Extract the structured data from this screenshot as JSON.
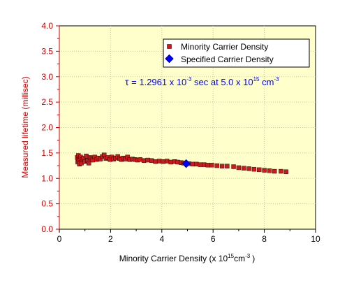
{
  "colors": {
    "plot_background": "#FFFFCC",
    "series_marker": "#CC1A1A",
    "specified_marker": "#0000FF",
    "y_axis": "#CC0000",
    "annotation": "#0000FF"
  },
  "chart_data": {
    "type": "scatter",
    "xlabel": {
      "prefix": "Minority Carrier Density (x 10",
      "exponent": "15",
      "unit": "cm",
      "unit_exponent": "-3",
      "suffix": ")"
    },
    "ylabel": "Measured lifetime (millisec)",
    "xlim": [
      0,
      10
    ],
    "ylim": [
      0,
      4
    ],
    "x_ticks": [
      0,
      2,
      4,
      6,
      8,
      10
    ],
    "y_ticks": [
      "0.0",
      "0.5",
      "1.0",
      "1.5",
      "2.0",
      "2.5",
      "3.0",
      "3.5",
      "4.0"
    ],
    "grid": true,
    "legend_position": "top-right",
    "series": [
      {
        "name": "Minority Carrier Density",
        "marker": "square",
        "points": [
          [
            0.7,
            1.41
          ],
          [
            0.72,
            1.32
          ],
          [
            0.74,
            1.45
          ],
          [
            0.76,
            1.36
          ],
          [
            0.78,
            1.28
          ],
          [
            0.8,
            1.39
          ],
          [
            0.83,
            1.42
          ],
          [
            0.86,
            1.3
          ],
          [
            0.9,
            1.37
          ],
          [
            0.95,
            1.4
          ],
          [
            1.0,
            1.33
          ],
          [
            1.05,
            1.44
          ],
          [
            1.1,
            1.35
          ],
          [
            1.15,
            1.3
          ],
          [
            1.2,
            1.41
          ],
          [
            1.25,
            1.38
          ],
          [
            1.3,
            1.36
          ],
          [
            1.38,
            1.42
          ],
          [
            1.45,
            1.37
          ],
          [
            1.52,
            1.4
          ],
          [
            1.6,
            1.38
          ],
          [
            1.68,
            1.43
          ],
          [
            1.75,
            1.46
          ],
          [
            1.82,
            1.39
          ],
          [
            1.9,
            1.41
          ],
          [
            1.98,
            1.37
          ],
          [
            2.05,
            1.42
          ],
          [
            2.12,
            1.38
          ],
          [
            2.2,
            1.4
          ],
          [
            2.28,
            1.43
          ],
          [
            2.35,
            1.39
          ],
          [
            2.42,
            1.37
          ],
          [
            2.5,
            1.4
          ],
          [
            2.58,
            1.38
          ],
          [
            2.66,
            1.42
          ],
          [
            2.75,
            1.37
          ],
          [
            2.85,
            1.38
          ],
          [
            2.95,
            1.37
          ],
          [
            3.05,
            1.36
          ],
          [
            3.15,
            1.37
          ],
          [
            3.3,
            1.35
          ],
          [
            3.45,
            1.36
          ],
          [
            3.6,
            1.35
          ],
          [
            3.75,
            1.33
          ],
          [
            3.9,
            1.34
          ],
          [
            4.05,
            1.33
          ],
          [
            4.2,
            1.34
          ],
          [
            4.35,
            1.32
          ],
          [
            4.5,
            1.33
          ],
          [
            4.62,
            1.32
          ],
          [
            4.75,
            1.31
          ],
          [
            4.85,
            1.3
          ],
          [
            5.05,
            1.29
          ],
          [
            5.2,
            1.28
          ],
          [
            5.35,
            1.28
          ],
          [
            5.5,
            1.27
          ],
          [
            5.65,
            1.27
          ],
          [
            5.8,
            1.26
          ],
          [
            5.95,
            1.26
          ],
          [
            6.15,
            1.25
          ],
          [
            6.35,
            1.24
          ],
          [
            6.55,
            1.24
          ],
          [
            6.8,
            1.23
          ],
          [
            7.0,
            1.21
          ],
          [
            7.2,
            1.2
          ],
          [
            7.4,
            1.19
          ],
          [
            7.6,
            1.18
          ],
          [
            7.8,
            1.17
          ],
          [
            8.0,
            1.16
          ],
          [
            8.2,
            1.15
          ],
          [
            8.4,
            1.14
          ],
          [
            8.65,
            1.14
          ],
          [
            8.85,
            1.13
          ]
        ]
      },
      {
        "name": "Specified Carrier Density",
        "marker": "diamond",
        "points": [
          [
            4.95,
            1.29
          ]
        ]
      }
    ],
    "annotation": {
      "symbol": "τ",
      "text1": " = 1.2961 x 10",
      "exp1": "-3",
      "text2": " sec at 5.0 x 10",
      "exp2": "15",
      "text3": " cm",
      "exp3": "-3"
    }
  }
}
